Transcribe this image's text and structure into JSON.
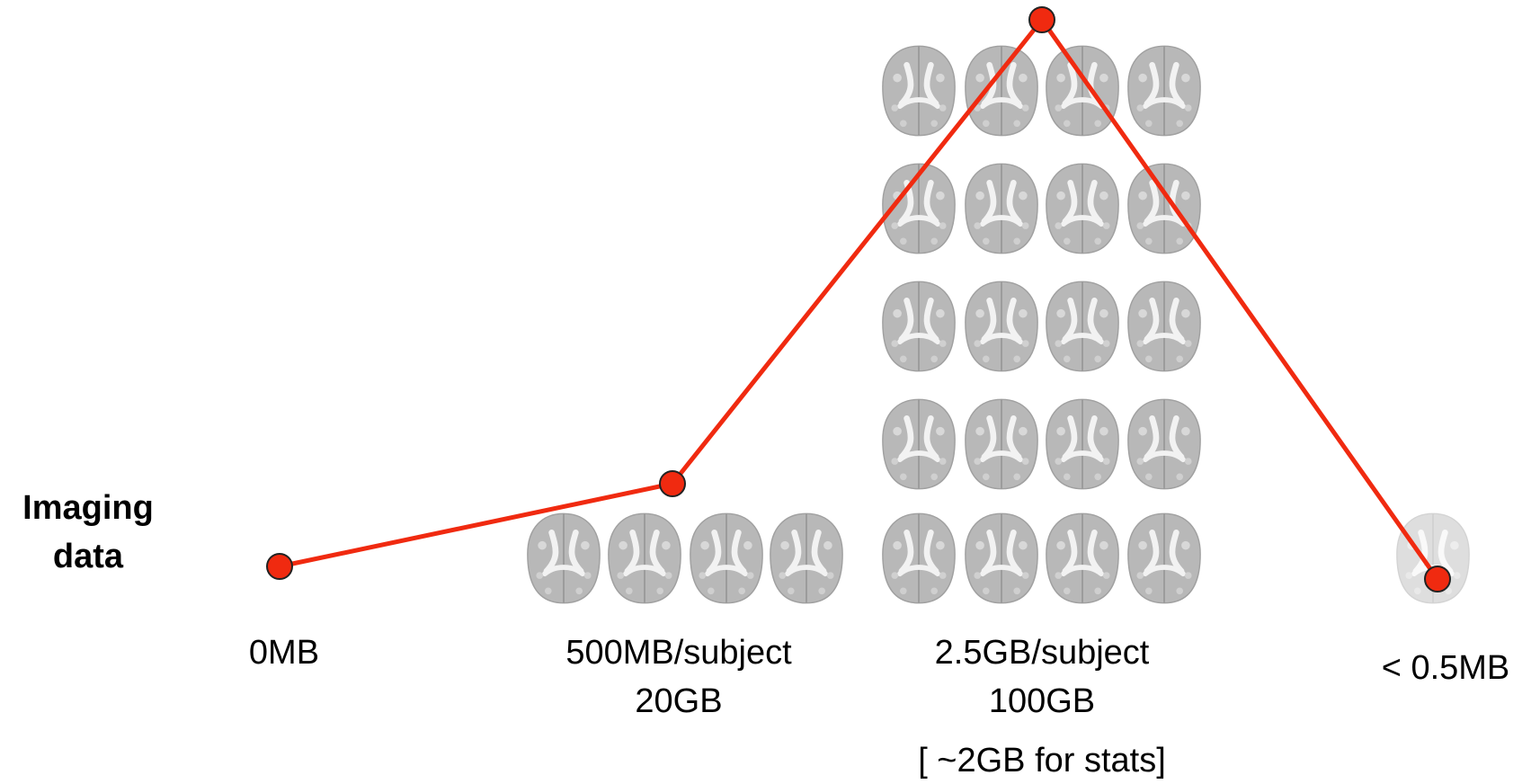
{
  "row_label": [
    "Imaging",
    "data"
  ],
  "stages": [
    {
      "labels": [
        "0MB"
      ]
    },
    {
      "labels": [
        "500MB/subject",
        "20GB"
      ]
    },
    {
      "labels": [
        "2.5GB/subject",
        "100GB",
        "[ ~2GB for stats]"
      ]
    },
    {
      "labels": [
        "< 0.5MB"
      ]
    }
  ]
}
